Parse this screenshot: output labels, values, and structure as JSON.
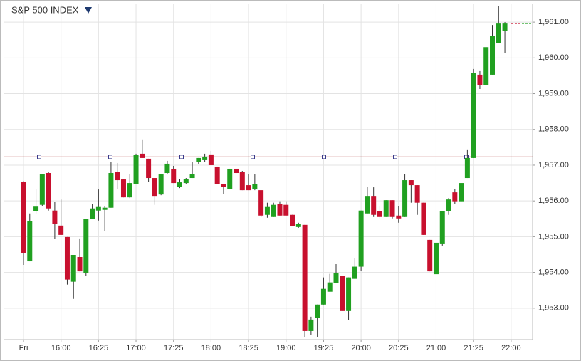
{
  "chart_data": {
    "type": "candlestick",
    "title": "S&P 500 INDEX",
    "categories": [
      "Fri",
      null,
      null,
      null,
      null,
      null,
      "16:00",
      null,
      null,
      null,
      null,
      null,
      "16:25",
      null,
      null,
      null,
      null,
      null,
      "17:00",
      null,
      null,
      null,
      null,
      null,
      "17:25",
      null,
      null,
      null,
      null,
      null,
      "18:00",
      null,
      null,
      null,
      null,
      null,
      "18:25",
      null,
      null,
      null,
      null,
      null,
      "19:00",
      null,
      null,
      null,
      null,
      null,
      "19:25",
      null,
      null,
      null,
      null,
      null,
      "20:00",
      null,
      null,
      null,
      null,
      null,
      "20:25",
      null,
      null,
      null,
      null,
      null,
      "21:00",
      null,
      null,
      null,
      null,
      null,
      "21:25",
      null,
      null,
      null,
      null,
      null,
      "22:00"
    ],
    "open": [
      1956.54,
      1954.31,
      1955.72,
      1955.89,
      1956.78,
      1955.73,
      1955.31,
      1954.99,
      1953.74,
      1954.43,
      1953.99,
      1955.49,
      1955.73,
      1955.75,
      1955.81,
      1956.82,
      1956.6,
      1956.1,
      1956.48,
      1957.32,
      1957.18,
      1956.64,
      1956.18,
      1956.78,
      1956.9,
      1956.4,
      1956.5,
      1956.64,
      1957.08,
      1957.14,
      1957.3,
      1956.96,
      1956.48,
      1956.34,
      1956.9,
      1956.8,
      1956.44,
      1956.34,
      1956.3,
      1955.61,
      1955.55,
      1955.91,
      1955.89,
      1955.61,
      1955.27,
      1955.33,
      1952.36,
      1952.72,
      1953.1,
      1953.46,
      1953.7,
      1953.9,
      1952.92,
      1953.82,
      1954.16,
      1955.65,
      1956.14,
      1955.71,
      1955.55,
      1956.02,
      1955.59,
      1955.55,
      1956.58,
      1956.44,
      1955.95,
      1954.91,
      1953.95,
      1954.81,
      1955.71,
      1956.24,
      1955.99,
      1956.64,
      1957.2,
      1959.53,
      1959.23,
      1959.53,
      1960.42,
      1960.76,
      null
    ],
    "high": [
      1956.55,
      1955.65,
      1956.34,
      1956.76,
      1956.82,
      1955.97,
      1956.04,
      1954.99,
      1954.49,
      1954.95,
      1955.49,
      1955.91,
      1956.32,
      1955.85,
      1957.08,
      1957.06,
      1956.6,
      1956.74,
      1957.32,
      1957.72,
      1957.18,
      1956.64,
      1956.74,
      1957.12,
      1956.98,
      1956.6,
      1956.64,
      1957.08,
      1957.2,
      1957.32,
      1957.4,
      1956.96,
      1956.48,
      1956.9,
      1956.9,
      1956.84,
      1956.74,
      1956.74,
      1956.3,
      1955.95,
      1955.95,
      1955.99,
      1955.99,
      1955.61,
      1955.39,
      1955.33,
      1952.76,
      1953.1,
      1953.86,
      1953.96,
      1954.23,
      1953.9,
      1953.86,
      1954.41,
      1955.73,
      1956.4,
      1956.38,
      1955.85,
      1956.02,
      1956.02,
      1955.85,
      1956.74,
      1956.58,
      1956.44,
      1955.95,
      1954.91,
      1954.83,
      1955.71,
      1956.08,
      1956.34,
      1956.5,
      1957.44,
      1959.69,
      1959.63,
      1960.3,
      1960.92,
      1961.46,
      1961.0,
      null
    ],
    "low": [
      1954.21,
      1954.31,
      1955.65,
      1955.85,
      1955.73,
      1954.93,
      1955.05,
      1953.66,
      1953.26,
      1954.03,
      1953.9,
      1955.49,
      1955.45,
      1955.15,
      1955.81,
      1956.34,
      1956.1,
      1956.08,
      1956.48,
      1957.2,
      1956.54,
      1955.89,
      1956.16,
      1956.76,
      1956.5,
      1956.36,
      1956.48,
      1956.64,
      1957.04,
      1957.08,
      1957.0,
      1956.48,
      1956.2,
      1956.34,
      1956.74,
      1956.3,
      1956.3,
      1956.3,
      1955.55,
      1955.53,
      1955.55,
      1955.59,
      1955.59,
      1955.29,
      1955.25,
      1952.2,
      1952.26,
      1952.2,
      1953.1,
      1953.46,
      1953.7,
      1952.92,
      1952.66,
      1953.82,
      1954.05,
      1955.65,
      1955.55,
      1955.51,
      1955.55,
      1955.51,
      1955.39,
      1955.55,
      1955.95,
      1955.61,
      1955.05,
      1954.03,
      1953.95,
      1954.75,
      1955.61,
      1955.91,
      1955.99,
      1956.64,
      1957.2,
      1959.13,
      1959.23,
      1959.53,
      1960.42,
      1960.14,
      null
    ],
    "close": [
      1954.55,
      1955.43,
      1955.84,
      1956.74,
      1955.79,
      1955.35,
      1955.05,
      1953.8,
      1954.49,
      1954.03,
      1955.49,
      1955.79,
      1955.83,
      1955.81,
      1956.78,
      1956.58,
      1956.1,
      1956.5,
      1957.28,
      1957.2,
      1956.64,
      1956.14,
      1956.74,
      1957.04,
      1956.5,
      1956.52,
      1956.62,
      1956.76,
      1957.2,
      1957.24,
      1957.0,
      1956.48,
      1956.4,
      1956.9,
      1956.78,
      1956.3,
      1956.3,
      1956.48,
      1955.59,
      1955.83,
      1955.89,
      1955.59,
      1955.59,
      1955.29,
      1955.35,
      1952.36,
      1952.68,
      1953.1,
      1953.54,
      1953.72,
      1953.99,
      1952.92,
      1953.86,
      1954.16,
      1955.73,
      1956.14,
      1955.61,
      1955.55,
      1956.02,
      1955.55,
      1955.51,
      1956.58,
      1956.44,
      1955.95,
      1955.05,
      1954.03,
      1954.83,
      1955.71,
      1956.04,
      1955.99,
      1956.5,
      1957.2,
      1959.57,
      1959.23,
      1960.3,
      1960.62,
      1960.96,
      1960.96,
      null
    ],
    "up_color": "#20a020",
    "down_color": "#c8102e",
    "ylim": [
      1952.12,
      1961.52
    ],
    "yticks": [
      {
        "value": 1953,
        "label": "1,953.00"
      },
      {
        "value": 1954,
        "label": "1,954.00"
      },
      {
        "value": 1955,
        "label": "1,955.00"
      },
      {
        "value": 1956,
        "label": "1,956.00"
      },
      {
        "value": 1957,
        "label": "1,957.00"
      },
      {
        "value": 1958,
        "label": "1,958.00"
      },
      {
        "value": 1959,
        "label": "1,959.00"
      },
      {
        "value": 1960,
        "label": "1,960.00"
      },
      {
        "value": 1961,
        "label": "1,961.00"
      }
    ],
    "reference_line": {
      "value": 1957.23,
      "color": "#990000"
    },
    "grid": true
  }
}
